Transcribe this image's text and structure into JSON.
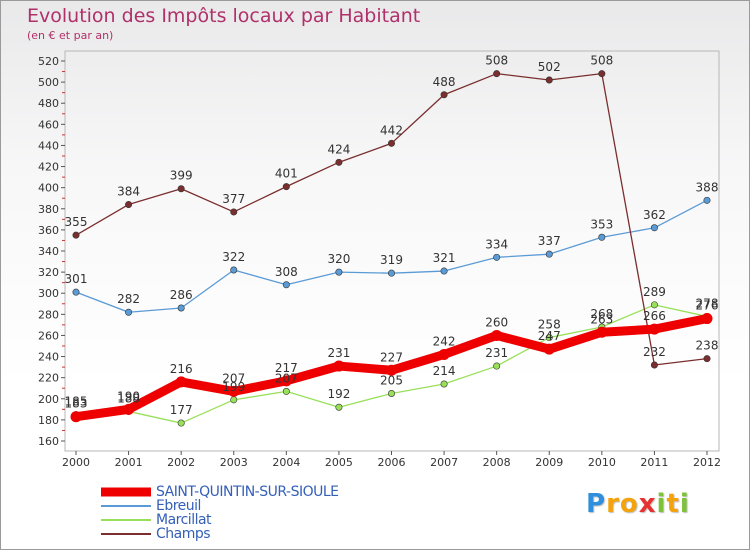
{
  "chart_data": {
    "type": "line",
    "title": "Evolution des Impôts locaux par Habitant",
    "subtitle": "(en € et par an)",
    "xlabel": "",
    "ylabel": "",
    "categories": [
      "2000",
      "2001",
      "2002",
      "2003",
      "2004",
      "2005",
      "2006",
      "2007",
      "2008",
      "2009",
      "2010",
      "2011",
      "2012"
    ],
    "ylim": [
      160,
      520
    ],
    "yticks": [
      160,
      180,
      200,
      220,
      240,
      260,
      280,
      300,
      320,
      340,
      360,
      380,
      400,
      420,
      440,
      460,
      480,
      500,
      520
    ],
    "grid": false,
    "legend_position": "bottom-left",
    "series": [
      {
        "name": "SAINT-QUINTIN-SUR-SIOULE",
        "color": "#ee0000",
        "bold": true,
        "values": [
          183,
          190,
          216,
          207,
          217,
          231,
          227,
          242,
          260,
          247,
          263,
          266,
          276
        ]
      },
      {
        "name": "Ebreuil",
        "color": "#5b9bd5",
        "values": [
          301,
          282,
          286,
          322,
          308,
          320,
          319,
          321,
          334,
          337,
          353,
          362,
          388
        ]
      },
      {
        "name": "Marcillat",
        "color": "#99e05a",
        "values": [
          185,
          188,
          177,
          199,
          207,
          192,
          205,
          214,
          231,
          258,
          268,
          289,
          278
        ]
      },
      {
        "name": "Champs",
        "color": "#7a2e2e",
        "values": [
          355,
          384,
          399,
          377,
          401,
          424,
          442,
          488,
          508,
          502,
          508,
          232,
          238
        ]
      }
    ]
  },
  "legend": {
    "items": [
      {
        "label": "SAINT-QUINTIN-SUR-SIOULE",
        "color": "#ee0000"
      },
      {
        "label": "Ebreuil",
        "color": "#5b9bd5"
      },
      {
        "label": "Marcillat",
        "color": "#99e05a"
      },
      {
        "label": "Champs",
        "color": "#7a2e2e"
      }
    ]
  },
  "logo": {
    "letters": [
      "P",
      "r",
      "o",
      "x",
      "i",
      "t",
      "i"
    ],
    "colors": [
      "#2f8fdd",
      "#f4a30c",
      "#f4a30c",
      "#e83030",
      "#7ec23c",
      "#f4a30c",
      "#7ec23c"
    ]
  }
}
